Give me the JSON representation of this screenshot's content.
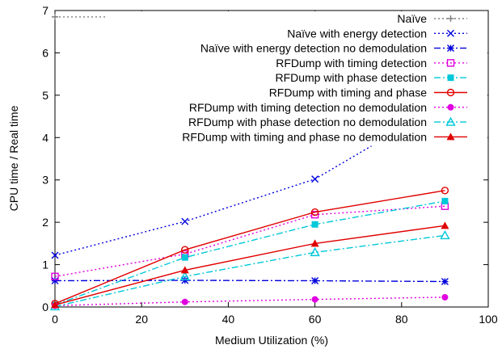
{
  "chart_data": {
    "type": "line",
    "title": "",
    "xlabel": "Medium Utilization (%)",
    "ylabel": "CPU time / Real time",
    "xlim": [
      0,
      100
    ],
    "ylim": [
      0,
      7
    ],
    "xticks": [
      "0",
      "20",
      "40",
      "60",
      "80",
      "100"
    ],
    "yticks": [
      "0",
      "1",
      "2",
      "3",
      "4",
      "5",
      "6",
      "7"
    ],
    "grid": false,
    "legend_position": "top-right",
    "series": [
      {
        "name": "Naïve",
        "color": "#808080",
        "dash": "dotted",
        "marker": "plus",
        "x": [
          0,
          30,
          60,
          90
        ],
        "y": [
          6.85,
          6.85,
          6.86,
          6.63
        ]
      },
      {
        "name": "Naïve with energy detection",
        "color": "#0000dd",
        "dash": "dotted",
        "marker": "x",
        "x": [
          0,
          30,
          60,
          90
        ],
        "y": [
          1.22,
          2.02,
          3.02,
          4.82
        ]
      },
      {
        "name": "Naïve with energy detection no demodulation",
        "color": "#0000dd",
        "dash": "dashdot",
        "marker": "star",
        "x": [
          0,
          30,
          60,
          90
        ],
        "y": [
          0.62,
          0.63,
          0.62,
          0.6
        ]
      },
      {
        "name": "RFDump with timing detection",
        "color": "#e000e0",
        "dash": "dotted",
        "marker": "square-open",
        "x": [
          0,
          30,
          60,
          90
        ],
        "y": [
          0.72,
          1.25,
          2.18,
          2.38
        ]
      },
      {
        "name": "RFDump with phase detection",
        "color": "#00c8d8",
        "dash": "dashdot",
        "marker": "square-filled",
        "x": [
          0,
          30,
          60,
          90
        ],
        "y": [
          0.05,
          1.17,
          1.95,
          2.5
        ]
      },
      {
        "name": "RFDump with timing and phase",
        "color": "#e00000",
        "dash": "solid",
        "marker": "circle-open",
        "x": [
          0,
          30,
          60,
          90
        ],
        "y": [
          0.08,
          1.35,
          2.24,
          2.75
        ]
      },
      {
        "name": "RFDump with timing detection no demodulation",
        "color": "#e000e0",
        "dash": "dotted",
        "marker": "circle-filled",
        "x": [
          0,
          30,
          60,
          90
        ],
        "y": [
          0.03,
          0.12,
          0.18,
          0.23
        ]
      },
      {
        "name": "RFDump with phase detection no demodulation",
        "color": "#00c8d8",
        "dash": "dashdot",
        "marker": "triangle-open",
        "x": [
          0,
          30,
          60,
          90
        ],
        "y": [
          0.01,
          0.72,
          1.29,
          1.69
        ]
      },
      {
        "name": "RFDump with timing and phase no demodulation",
        "color": "#e00000",
        "dash": "solid",
        "marker": "triangle-filled",
        "x": [
          0,
          30,
          60,
          90
        ],
        "y": [
          0.05,
          0.87,
          1.5,
          1.92
        ]
      }
    ]
  }
}
